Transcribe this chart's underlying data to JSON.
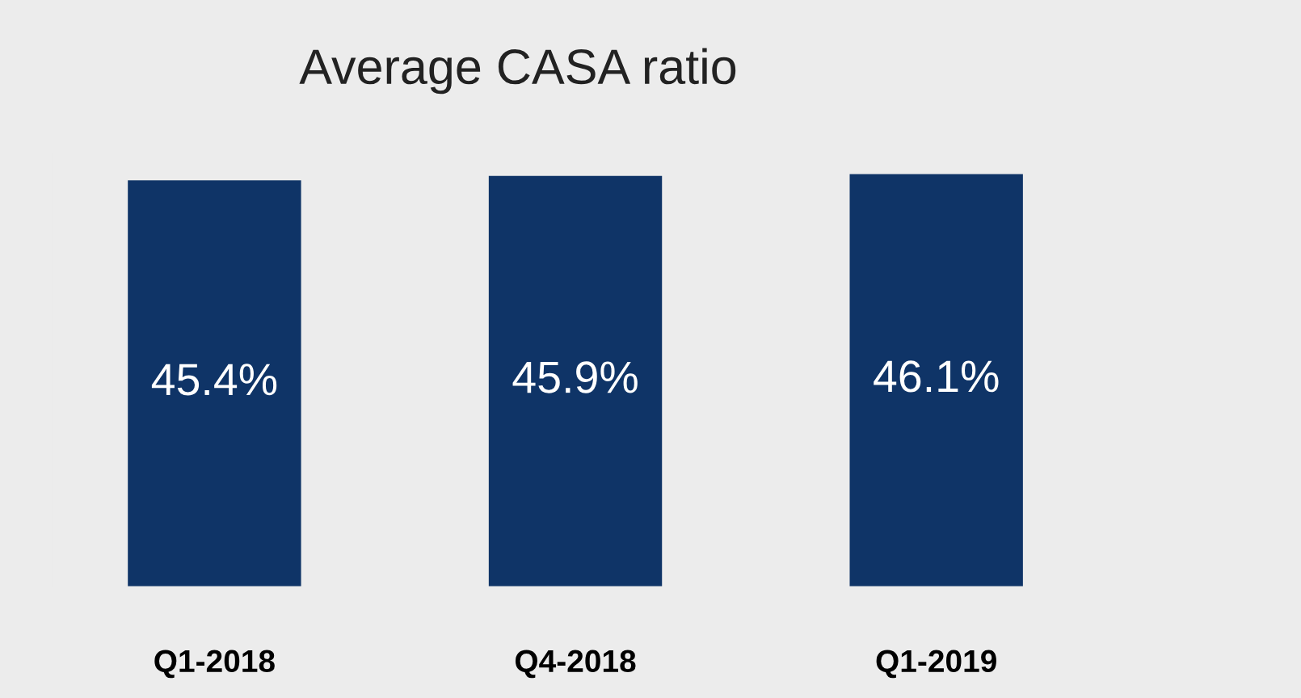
{
  "chart_data": {
    "type": "bar",
    "title": "Average CASA ratio",
    "categories": [
      "Q1-2018",
      "Q4-2018",
      "Q1-2019"
    ],
    "values": [
      45.4,
      45.9,
      46.1
    ],
    "value_labels": [
      "45.4%",
      "45.9%",
      "46.1%"
    ],
    "color": "#0f3467",
    "grid": false,
    "legend": false
  }
}
